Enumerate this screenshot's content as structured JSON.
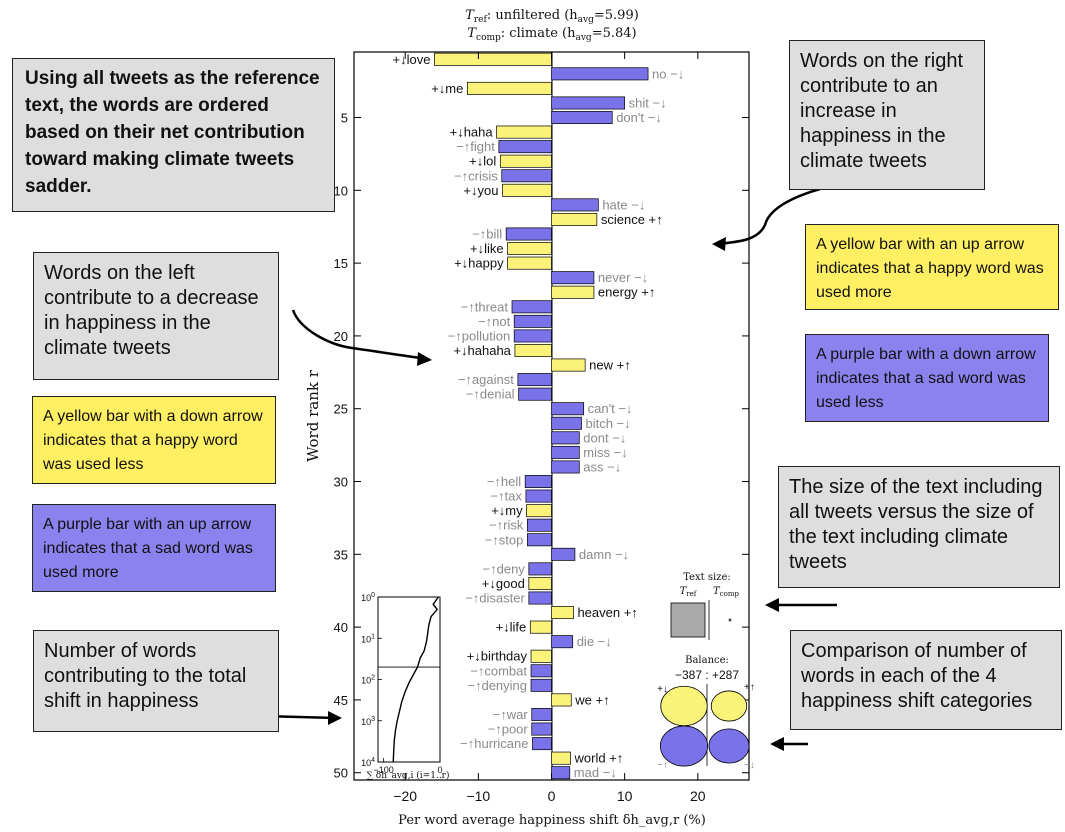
{
  "header": {
    "line1_sym": "T",
    "line1_sub": "ref",
    "line1_text": ": unfiltered (h",
    "line1_sub2": "avg",
    "line1_end": "=5.99)",
    "line2_sym": "T",
    "line2_sub": "comp",
    "line2_text": ": climate (h",
    "line2_sub2": "avg",
    "line2_end": "=5.84)"
  },
  "chart_data": {
    "type": "bar",
    "orientation": "horizontal",
    "xlabel": "Per word average happiness shift δh_avg,r (%)",
    "ylabel": "Word rank r",
    "xlim": [
      -27,
      27
    ],
    "ylim": [
      0.5,
      50.5
    ],
    "x_ticks": [
      -20,
      -10,
      0,
      10,
      20
    ],
    "y_ticks": [
      5,
      10,
      15,
      20,
      25,
      30,
      35,
      40,
      45,
      50
    ],
    "words": [
      {
        "rank": 1,
        "label": "+↓love",
        "value": -16,
        "color": "yellow",
        "dark": true
      },
      {
        "rank": 2,
        "label": "no −↓",
        "value": 13.2,
        "color": "purple",
        "dark": false
      },
      {
        "rank": 3,
        "label": "+↓me",
        "value": -11.5,
        "color": "yellow",
        "dark": true
      },
      {
        "rank": 4,
        "label": "shit −↓",
        "value": 10,
        "color": "purple",
        "dark": false
      },
      {
        "rank": 5,
        "label": "don't −↓",
        "value": 8.3,
        "color": "purple",
        "dark": false
      },
      {
        "rank": 6,
        "label": "+↓haha",
        "value": -7.5,
        "color": "yellow",
        "dark": true
      },
      {
        "rank": 7,
        "label": "−↑fight",
        "value": -7.2,
        "color": "purple",
        "dark": false
      },
      {
        "rank": 8,
        "label": "+↓lol",
        "value": -7,
        "color": "yellow",
        "dark": true
      },
      {
        "rank": 9,
        "label": "−↑crisis",
        "value": -6.8,
        "color": "purple",
        "dark": false
      },
      {
        "rank": 10,
        "label": "+↓you",
        "value": -6.7,
        "color": "yellow",
        "dark": true
      },
      {
        "rank": 11,
        "label": "hate −↓",
        "value": 6.4,
        "color": "purple",
        "dark": false
      },
      {
        "rank": 12,
        "label": "science +↑",
        "value": 6.2,
        "color": "yellow",
        "dark": true
      },
      {
        "rank": 13,
        "label": "−↑bill",
        "value": -6.2,
        "color": "purple",
        "dark": false
      },
      {
        "rank": 14,
        "label": "+↓like",
        "value": -6,
        "color": "yellow",
        "dark": true
      },
      {
        "rank": 15,
        "label": "+↓happy",
        "value": -6,
        "color": "yellow",
        "dark": true
      },
      {
        "rank": 16,
        "label": "never −↓",
        "value": 5.8,
        "color": "purple",
        "dark": false
      },
      {
        "rank": 17,
        "label": "energy +↑",
        "value": 5.8,
        "color": "yellow",
        "dark": true
      },
      {
        "rank": 18,
        "label": "−↑threat",
        "value": -5.4,
        "color": "purple",
        "dark": false
      },
      {
        "rank": 19,
        "label": "−↑not",
        "value": -5.1,
        "color": "purple",
        "dark": false
      },
      {
        "rank": 20,
        "label": "−↑pollution",
        "value": -5.1,
        "color": "purple",
        "dark": false
      },
      {
        "rank": 21,
        "label": "+↓hahaha",
        "value": -5,
        "color": "yellow",
        "dark": true
      },
      {
        "rank": 22,
        "label": "new +↑",
        "value": 4.6,
        "color": "yellow",
        "dark": true
      },
      {
        "rank": 23,
        "label": "−↑against",
        "value": -4.6,
        "color": "purple",
        "dark": false
      },
      {
        "rank": 24,
        "label": "−↑denial",
        "value": -4.5,
        "color": "purple",
        "dark": false
      },
      {
        "rank": 25,
        "label": "can't −↓",
        "value": 4.4,
        "color": "purple",
        "dark": false
      },
      {
        "rank": 26,
        "label": "bitch −↓",
        "value": 4.1,
        "color": "purple",
        "dark": false
      },
      {
        "rank": 27,
        "label": "dont −↓",
        "value": 3.8,
        "color": "purple",
        "dark": false
      },
      {
        "rank": 28,
        "label": "miss −↓",
        "value": 3.8,
        "color": "purple",
        "dark": false
      },
      {
        "rank": 29,
        "label": "ass −↓",
        "value": 3.8,
        "color": "purple",
        "dark": false
      },
      {
        "rank": 30,
        "label": "−↑hell",
        "value": -3.6,
        "color": "purple",
        "dark": false
      },
      {
        "rank": 31,
        "label": "−↑tax",
        "value": -3.5,
        "color": "purple",
        "dark": false
      },
      {
        "rank": 32,
        "label": "+↓my",
        "value": -3.4,
        "color": "yellow",
        "dark": true
      },
      {
        "rank": 33,
        "label": "−↑risk",
        "value": -3.3,
        "color": "purple",
        "dark": false
      },
      {
        "rank": 34,
        "label": "−↑stop",
        "value": -3.3,
        "color": "purple",
        "dark": false
      },
      {
        "rank": 35,
        "label": "damn −↓",
        "value": 3.2,
        "color": "purple",
        "dark": false
      },
      {
        "rank": 36,
        "label": "−↑deny",
        "value": -3.1,
        "color": "purple",
        "dark": false
      },
      {
        "rank": 37,
        "label": "+↓good",
        "value": -3.1,
        "color": "yellow",
        "dark": true
      },
      {
        "rank": 38,
        "label": "−↑disaster",
        "value": -3.1,
        "color": "purple",
        "dark": false
      },
      {
        "rank": 39,
        "label": "heaven +↑",
        "value": 3,
        "color": "yellow",
        "dark": true
      },
      {
        "rank": 40,
        "label": "+↓life",
        "value": -2.9,
        "color": "yellow",
        "dark": true
      },
      {
        "rank": 41,
        "label": "die −↓",
        "value": 2.9,
        "color": "purple",
        "dark": false
      },
      {
        "rank": 42,
        "label": "+↓birthday",
        "value": -2.8,
        "color": "yellow",
        "dark": true
      },
      {
        "rank": 43,
        "label": "−↑combat",
        "value": -2.8,
        "color": "purple",
        "dark": false
      },
      {
        "rank": 44,
        "label": "−↑denying",
        "value": -2.8,
        "color": "purple",
        "dark": false
      },
      {
        "rank": 45,
        "label": "we +↑",
        "value": 2.7,
        "color": "yellow",
        "dark": true
      },
      {
        "rank": 46,
        "label": "−↑war",
        "value": -2.7,
        "color": "purple",
        "dark": false
      },
      {
        "rank": 47,
        "label": "−↑poor",
        "value": -2.7,
        "color": "purple",
        "dark": false
      },
      {
        "rank": 48,
        "label": "−↑hurricane",
        "value": -2.6,
        "color": "purple",
        "dark": false
      },
      {
        "rank": 49,
        "label": "world +↑",
        "value": 2.6,
        "color": "yellow",
        "dark": true
      },
      {
        "rank": 50,
        "label": "mad −↓",
        "value": 2.5,
        "color": "purple",
        "dark": false
      }
    ],
    "inset": {
      "x_ticks": [
        -100,
        0
      ],
      "y_tick_powers": [
        0,
        1,
        2,
        3,
        4
      ],
      "y_tick_base": "10",
      "xlabel": "∑ δh_avg,i (i=1..r)",
      "cumulative_points": [
        [
          -3,
          1
        ],
        [
          -12,
          1.5
        ],
        [
          -5,
          2
        ],
        [
          -16,
          3
        ],
        [
          -20,
          5
        ],
        [
          -22,
          8
        ],
        [
          -24,
          12
        ],
        [
          -28,
          20
        ],
        [
          -35,
          30
        ],
        [
          -40,
          50
        ],
        [
          -48,
          80
        ],
        [
          -55,
          120
        ],
        [
          -62,
          200
        ],
        [
          -68,
          350
        ],
        [
          -72,
          600
        ],
        [
          -76,
          1000
        ],
        [
          -79,
          1700
        ],
        [
          -81,
          3000
        ],
        [
          -82,
          5000
        ],
        [
          -83,
          10000
        ]
      ],
      "threshold_rank": 50
    },
    "text_size": {
      "title": "Text size:",
      "ref_sym": "T",
      "ref_sub": "ref",
      "comp_sym": "T",
      "comp_sub": "comp",
      "ref_relative": 1.0,
      "comp_relative": 0.003
    },
    "balance": {
      "title": "Balance:",
      "label": "−387 : +287",
      "categories": [
        {
          "id": "happy-less",
          "label": "+↓",
          "relative": 0.6
        },
        {
          "id": "happy-more",
          "label": "+↑",
          "relative": 0.35
        },
        {
          "id": "sad-more",
          "label": "−↑",
          "relative": 0.62
        },
        {
          "id": "sad-less",
          "label": "−↓",
          "relative": 0.45
        }
      ]
    }
  },
  "callouts": {
    "ordering": "Using all tweets as the reference text, the words are ordered based on their net contribution toward making climate tweets sadder.",
    "right_words": "Words on the right contribute to an increase in happiness in the climate tweets",
    "left_words": "Words on the left contribute to a decrease in happiness in the climate tweets",
    "yellow_up": "A yellow bar with an up arrow indicates that a happy word was used more",
    "purple_down": "A purple bar with a down arrow indicates that a sad word was used less",
    "yellow_down": "A yellow bar with a down arrow indicates that a happy word was used less",
    "purple_up": "A purple bar with an up arrow indicates that a sad word was used more",
    "text_size": "The size of the text including all tweets versus the size of the text including climate tweets",
    "num_words": "Number of words contributing to the total shift in happiness",
    "comparison": "Comparison of number of words in each of the 4 happiness shift categories"
  },
  "colors": {
    "yellow": "#fbf27a",
    "purple": "#7a72e8",
    "dark_text": "#111111",
    "grey_text": "#8a8a8a"
  }
}
